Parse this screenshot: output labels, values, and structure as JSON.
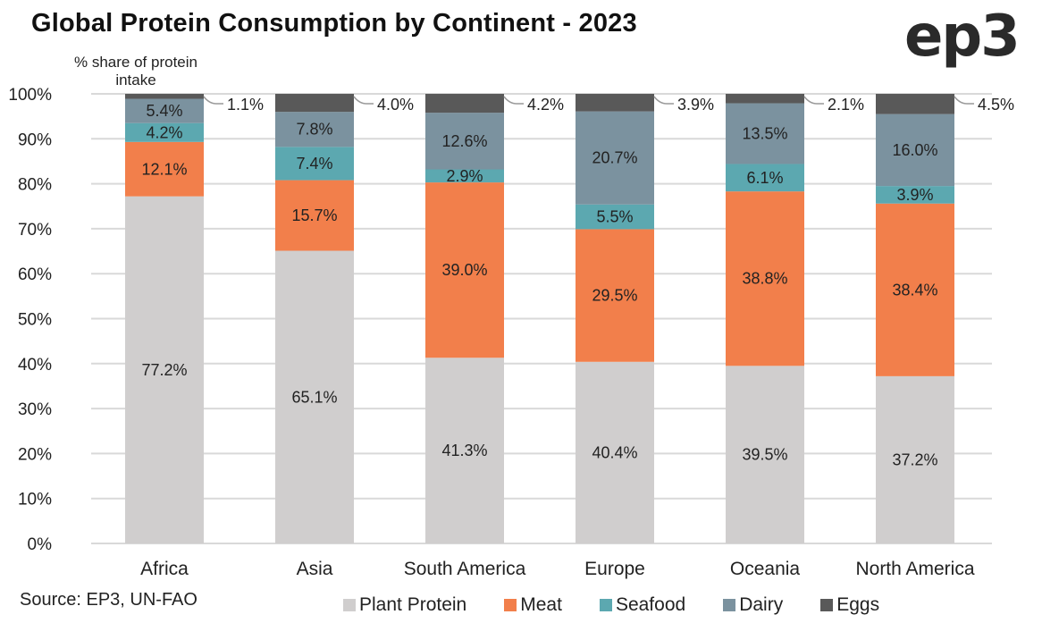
{
  "title": "Global Protein Consumption by Continent - 2023",
  "logo": "ep3",
  "source": "Source: EP3, UN-FAO",
  "chart_data": {
    "type": "bar",
    "stacked": true,
    "title": "Global Protein Consumption by Continent - 2023",
    "xlabel": "",
    "ylabel": "% share of protein intake",
    "ylim": [
      0,
      100
    ],
    "yticks": [
      "0%",
      "10%",
      "20%",
      "30%",
      "40%",
      "50%",
      "60%",
      "70%",
      "80%",
      "90%",
      "100%"
    ],
    "grid": true,
    "legend_position": "bottom",
    "categories": [
      "Africa",
      "Asia",
      "South America",
      "Europe",
      "Oceania",
      "North America"
    ],
    "series": [
      {
        "name": "Plant Protein",
        "color": "#d0cece",
        "values": [
          77.2,
          65.1,
          41.3,
          40.4,
          39.5,
          37.2
        ],
        "labels": [
          "77.2%",
          "65.1%",
          "41.3%",
          "40.4%",
          "39.5%",
          "37.2%"
        ]
      },
      {
        "name": "Meat",
        "color": "#f27f4b",
        "values": [
          12.1,
          15.7,
          39.0,
          29.5,
          38.8,
          38.4
        ],
        "labels": [
          "12.1%",
          "15.7%",
          "39.0%",
          "29.5%",
          "38.8%",
          "38.4%"
        ]
      },
      {
        "name": "Seafood",
        "color": "#5ca8b0",
        "values": [
          4.2,
          7.4,
          2.9,
          5.5,
          6.1,
          3.9
        ],
        "labels": [
          "4.2%",
          "7.4%",
          "2.9%",
          "5.5%",
          "6.1%",
          "3.9%"
        ]
      },
      {
        "name": "Dairy",
        "color": "#7b929f",
        "values": [
          5.4,
          7.8,
          12.6,
          20.7,
          13.5,
          16.0
        ],
        "labels": [
          "5.4%",
          "7.8%",
          "12.6%",
          "20.7%",
          "13.5%",
          "16.0%"
        ]
      },
      {
        "name": "Eggs",
        "color": "#595959",
        "values": [
          1.1,
          4.0,
          4.2,
          3.9,
          2.1,
          4.5
        ],
        "labels": [
          "1.1%",
          "4.0%",
          "4.2%",
          "3.9%",
          "2.1%",
          "4.5%"
        ],
        "label_outside": true
      }
    ]
  }
}
